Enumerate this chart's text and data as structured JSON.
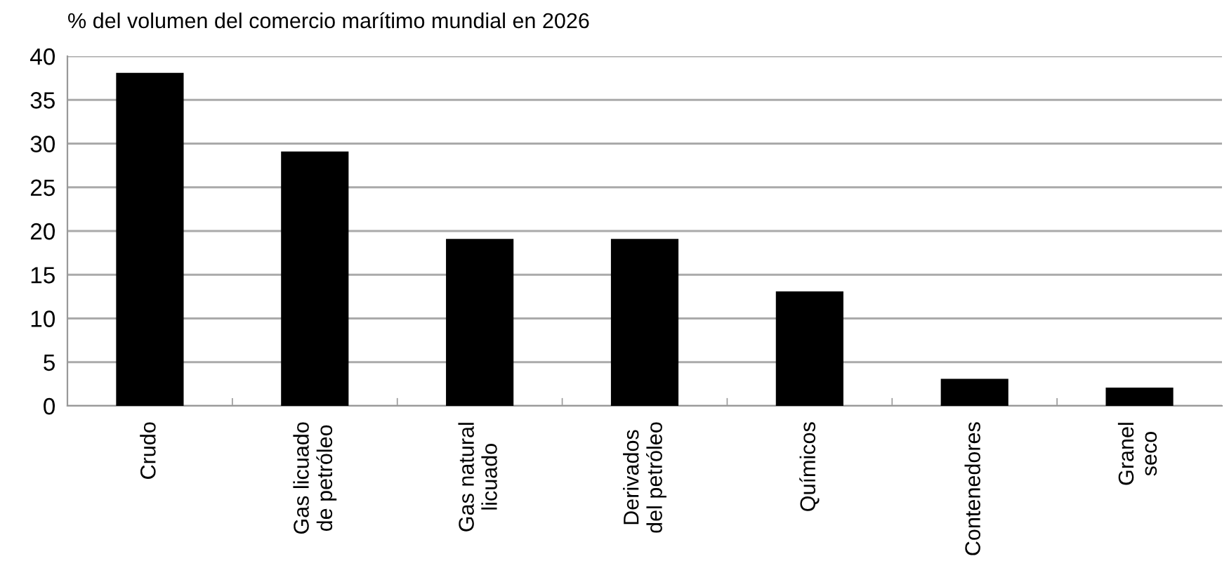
{
  "chart_data": {
    "type": "bar",
    "title": "% del volumen del comercio marítimo mundial en 2026",
    "categories": [
      "Crudo",
      "Gas licuado\nde petróleo",
      "Gas natural\nlicuado",
      "Derivados\ndel petróleo",
      "Químicos",
      "Contenedores",
      "Granel\nseco"
    ],
    "values": [
      38,
      29,
      19,
      19,
      13,
      3,
      2
    ],
    "color": "#000000",
    "ylim": [
      0,
      40
    ],
    "yticks": [
      0,
      5,
      10,
      15,
      20,
      25,
      30,
      35,
      40
    ],
    "grid": "y"
  }
}
